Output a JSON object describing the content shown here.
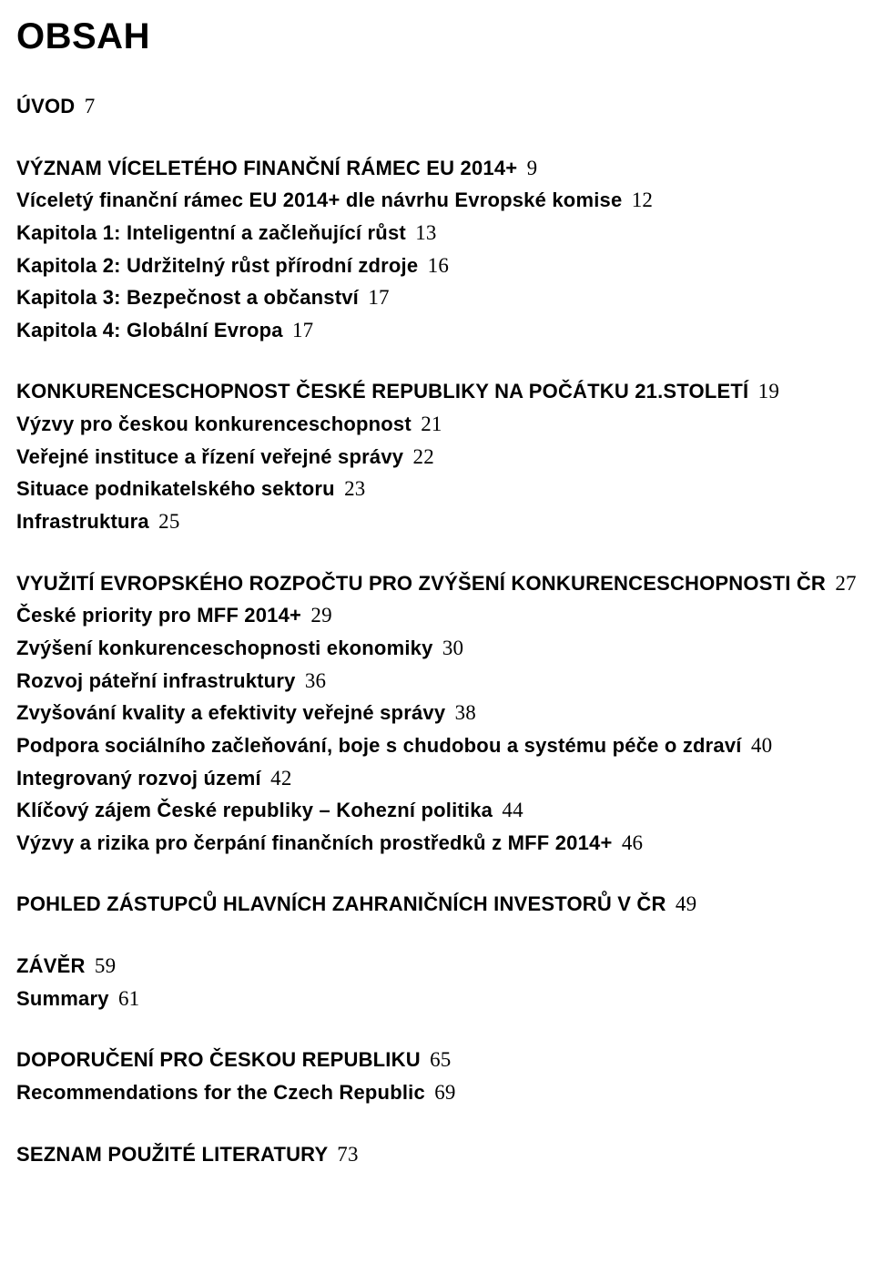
{
  "title": "OBSAH",
  "title_fontsize": 40,
  "body_fontsize": 22,
  "num_fontsize": 23,
  "text_color": "#000000",
  "background_color": "#ffffff",
  "num_font_family": "Georgia, 'Times New Roman', serif",
  "body_font_family": "Arial, Helvetica, sans-serif",
  "sections": [
    {
      "entries": [
        {
          "text": "ÚVOD",
          "page": "7"
        }
      ]
    },
    {
      "entries": [
        {
          "text": "VÝZNAM VÍCELETÉHO FINANČNÍ RÁMEC EU 2014+",
          "page": "9"
        },
        {
          "text": "Víceletý finanční rámec EU 2014+ dle návrhu Evropské komise",
          "page": "12"
        },
        {
          "text": "Kapitola 1: Inteligentní a začleňující růst",
          "page": "13"
        },
        {
          "text": "Kapitola 2: Udržitelný růst přírodní zdroje",
          "page": "16"
        },
        {
          "text": "Kapitola 3: Bezpečnost a občanství",
          "page": "17"
        },
        {
          "text": "Kapitola 4: Globální Evropa",
          "page": "17"
        }
      ]
    },
    {
      "entries": [
        {
          "text": "KONKURENCESCHOPNOST ČESKÉ REPUBLIKY NA POČÁTKU 21.STOLETÍ",
          "page": "19"
        },
        {
          "text": "Výzvy pro českou konkurenceschopnost",
          "page": "21"
        },
        {
          "text": "Veřejné instituce a řízení veřejné správy",
          "page": "22"
        },
        {
          "text": "Situace podnikatelského sektoru",
          "page": "23"
        },
        {
          "text": "Infrastruktura",
          "page": "25"
        }
      ]
    },
    {
      "entries": [
        {
          "text": "VYUŽITÍ EVROPSKÉHO ROZPOČTU PRO ZVÝŠENÍ KONKURENCESCHOPNOSTI ČR",
          "page": "27"
        },
        {
          "text": "České priority pro MFF 2014+",
          "page": "29"
        },
        {
          "text": "Zvýšení konkurenceschopnosti ekonomiky",
          "page": "30"
        },
        {
          "text": "Rozvoj páteřní infrastruktury",
          "page": "36"
        },
        {
          "text": "Zvyšování kvality a efektivity veřejné správy",
          "page": "38"
        },
        {
          "text": "Podpora sociálního začleňování, boje s chudobou a systému péče o zdraví",
          "page": "40"
        },
        {
          "text": "Integrovaný rozvoj území",
          "page": "42"
        },
        {
          "text": "Klíčový zájem České republiky – Kohezní politika",
          "page": "44"
        },
        {
          "text": "Výzvy a rizika pro čerpání finančních prostředků z MFF 2014+",
          "page": "46"
        }
      ]
    },
    {
      "entries": [
        {
          "text": "POHLED ZÁSTUPCŮ HLAVNÍCH ZAHRANIČNÍCH INVESTORŮ V ČR",
          "page": "49"
        }
      ]
    },
    {
      "entries": [
        {
          "text": "ZÁVĚR",
          "page": "59"
        },
        {
          "text": "Summary",
          "page": "61"
        }
      ]
    },
    {
      "entries": [
        {
          "text": "DOPORUČENÍ PRO ČESKOU REPUBLIKU",
          "page": "65"
        },
        {
          "text": "Recommendations for the Czech Republic",
          "page": "69"
        }
      ]
    },
    {
      "entries": [
        {
          "text": "SEZNAM POUŽITÉ LITERATURY",
          "page": "73"
        }
      ]
    }
  ]
}
